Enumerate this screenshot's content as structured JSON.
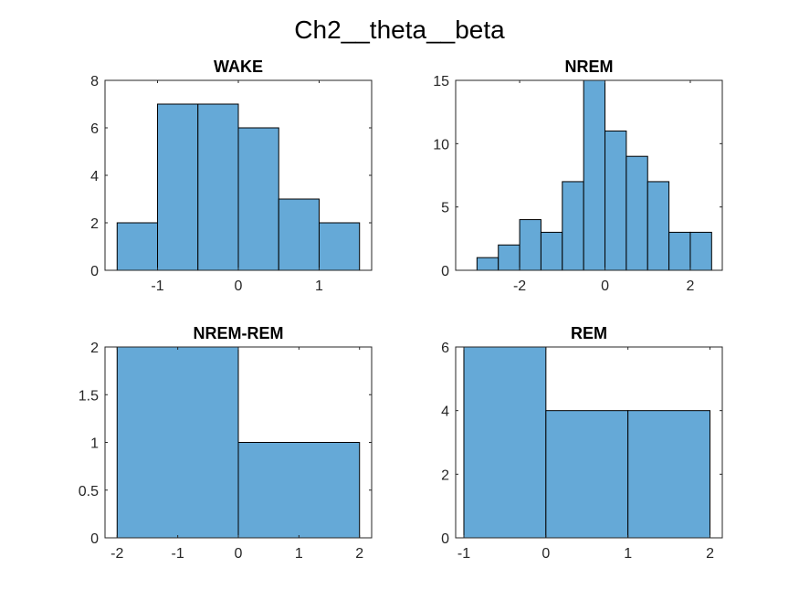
{
  "figure_title": "Ch2__theta__beta",
  "colors": {
    "bar_fill": "#65a9d7",
    "bar_edge": "#000000",
    "axis": "#262626"
  },
  "chart_data": [
    {
      "type": "histogram",
      "title": "WAKE",
      "xlabel": "",
      "ylabel": "",
      "xlim": [
        -1.65,
        1.65
      ],
      "ylim": [
        0,
        8
      ],
      "xticks": [
        -1,
        0,
        1
      ],
      "xtick_labels": [
        "-1",
        "0",
        "1"
      ],
      "yticks": [
        0,
        2,
        4,
        6,
        8
      ],
      "ytick_labels": [
        "0",
        "2",
        "4",
        "6",
        "8"
      ],
      "bin_edges": [
        -1.5,
        -1.0,
        -0.5,
        0.0,
        0.5,
        1.0,
        1.5
      ],
      "counts": [
        2,
        7,
        7,
        6,
        3,
        2
      ]
    },
    {
      "type": "histogram",
      "title": "NREM",
      "xlabel": "",
      "ylabel": "",
      "xlim": [
        -3.5,
        2.75
      ],
      "ylim": [
        0,
        15
      ],
      "xticks": [
        -2,
        0,
        2
      ],
      "xtick_labels": [
        "-2",
        "0",
        "2"
      ],
      "yticks": [
        0,
        5,
        10,
        15
      ],
      "ytick_labels": [
        "0",
        "5",
        "10",
        "15"
      ],
      "bin_edges": [
        -3.0,
        -2.5,
        -2.0,
        -1.5,
        -1.0,
        -0.5,
        0.0,
        0.5,
        1.0,
        1.5,
        2.0,
        2.5
      ],
      "counts": [
        1,
        2,
        4,
        3,
        7,
        15,
        11,
        9,
        7,
        3,
        3
      ]
    },
    {
      "type": "histogram",
      "title": "NREM-REM",
      "xlabel": "",
      "ylabel": "",
      "xlim": [
        -2.2,
        2.2
      ],
      "ylim": [
        0,
        2
      ],
      "xticks": [
        -2,
        -1,
        0,
        1,
        2
      ],
      "xtick_labels": [
        "-2",
        "-1",
        "0",
        "1",
        "2"
      ],
      "yticks": [
        0,
        0.5,
        1,
        1.5,
        2
      ],
      "ytick_labels": [
        "0",
        "0.5",
        "1",
        "1.5",
        "2"
      ],
      "bin_edges": [
        -2,
        0,
        2
      ],
      "counts": [
        2,
        1
      ]
    },
    {
      "type": "histogram",
      "title": "REM",
      "xlabel": "",
      "ylabel": "",
      "xlim": [
        -1.1,
        2.15
      ],
      "ylim": [
        0,
        6
      ],
      "xticks": [
        -1,
        0,
        1,
        2
      ],
      "xtick_labels": [
        "-1",
        "0",
        "1",
        "2"
      ],
      "yticks": [
        0,
        2,
        4,
        6
      ],
      "ytick_labels": [
        "0",
        "2",
        "4",
        "6"
      ],
      "bin_edges": [
        -1,
        0,
        1,
        2
      ],
      "counts": [
        6,
        4,
        4
      ]
    }
  ]
}
